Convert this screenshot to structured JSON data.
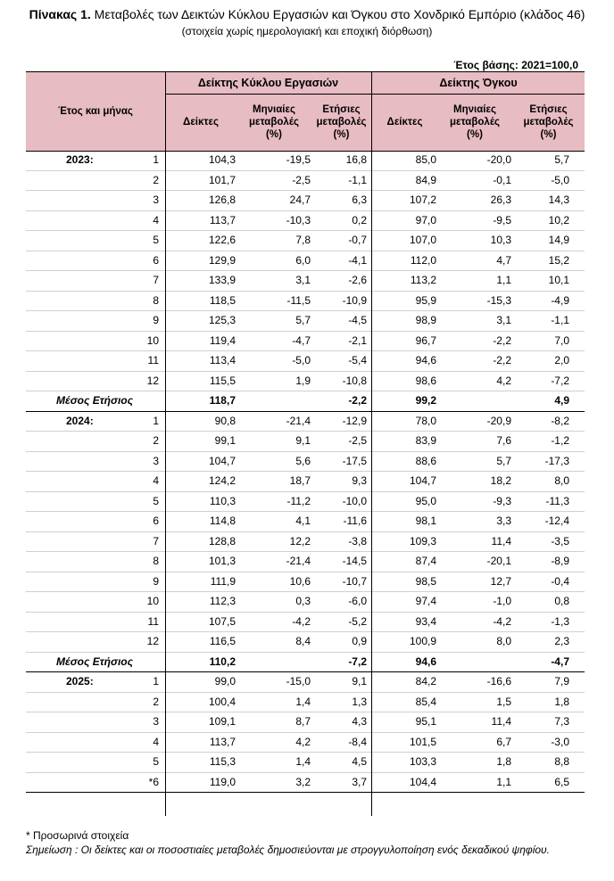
{
  "title": {
    "prefix": "Πίνακας 1.",
    "text": "Μεταβολές των Δεικτών Κύκλου Εργασιών και Όγκου στο Χονδρικό Εμπόριο (κλάδος 46)"
  },
  "subtitle": "(στοιχεία χωρίς ημερολογιακή και εποχική διόρθωση)",
  "base_year": "Έτος βάσης: 2021=100,0",
  "headers": {
    "group_turnover": "Δείκτης Κύκλου Εργασιών",
    "group_volume": "Δείκτης Όγκου",
    "year_month": "Έτος και μήνας",
    "index": "Δείκτες",
    "monthly_line1": "Μηνιαίες",
    "monthly_line2": "μεταβολές",
    "monthly_line3": "(%)",
    "annual_line1": "Ετήσιες",
    "annual_line2": "μεταβολές",
    "annual_line3": "(%)"
  },
  "rows": [
    {
      "year": "2023:",
      "month": "1",
      "v": [
        "104,3",
        "-19,5",
        "16,8",
        "85,0",
        "-20,0",
        "5,7"
      ]
    },
    {
      "year": "",
      "month": "2",
      "v": [
        "101,7",
        "-2,5",
        "-1,1",
        "84,9",
        "-0,1",
        "-5,0"
      ]
    },
    {
      "year": "",
      "month": "3",
      "v": [
        "126,8",
        "24,7",
        "6,3",
        "107,2",
        "26,3",
        "14,3"
      ]
    },
    {
      "year": "",
      "month": "4",
      "v": [
        "113,7",
        "-10,3",
        "0,2",
        "97,0",
        "-9,5",
        "10,2"
      ]
    },
    {
      "year": "",
      "month": "5",
      "v": [
        "122,6",
        "7,8",
        "-0,7",
        "107,0",
        "10,3",
        "14,9"
      ]
    },
    {
      "year": "",
      "month": "6",
      "v": [
        "129,9",
        "6,0",
        "-4,1",
        "112,0",
        "4,7",
        "15,2"
      ]
    },
    {
      "year": "",
      "month": "7",
      "v": [
        "133,9",
        "3,1",
        "-2,6",
        "113,2",
        "1,1",
        "10,1"
      ]
    },
    {
      "year": "",
      "month": "8",
      "v": [
        "118,5",
        "-11,5",
        "-10,9",
        "95,9",
        "-15,3",
        "-4,9"
      ]
    },
    {
      "year": "",
      "month": "9",
      "v": [
        "125,3",
        "5,7",
        "-4,5",
        "98,9",
        "3,1",
        "-1,1"
      ]
    },
    {
      "year": "",
      "month": "10",
      "v": [
        "119,4",
        "-4,7",
        "-2,1",
        "96,7",
        "-2,2",
        "7,0"
      ]
    },
    {
      "year": "",
      "month": "11",
      "v": [
        "113,4",
        "-5,0",
        "-5,4",
        "94,6",
        "-2,2",
        "2,0"
      ]
    },
    {
      "year": "",
      "month": "12",
      "v": [
        "115,5",
        "1,9",
        "-10,8",
        "98,6",
        "4,2",
        "-7,2"
      ]
    },
    {
      "avg": "Μέσος Ετήσιος",
      "v": [
        "118,7",
        "",
        "-2,2",
        "99,2",
        "",
        "4,9"
      ]
    },
    {
      "year": "2024:",
      "month": "1",
      "v": [
        "90,8",
        "-21,4",
        "-12,9",
        "78,0",
        "-20,9",
        "-8,2"
      ]
    },
    {
      "year": "",
      "month": "2",
      "v": [
        "99,1",
        "9,1",
        "-2,5",
        "83,9",
        "7,6",
        "-1,2"
      ]
    },
    {
      "year": "",
      "month": "3",
      "v": [
        "104,7",
        "5,6",
        "-17,5",
        "88,6",
        "5,7",
        "-17,3"
      ]
    },
    {
      "year": "",
      "month": "4",
      "v": [
        "124,2",
        "18,7",
        "9,3",
        "104,7",
        "18,2",
        "8,0"
      ]
    },
    {
      "year": "",
      "month": "5",
      "v": [
        "110,3",
        "-11,2",
        "-10,0",
        "95,0",
        "-9,3",
        "-11,3"
      ]
    },
    {
      "year": "",
      "month": "6",
      "v": [
        "114,8",
        "4,1",
        "-11,6",
        "98,1",
        "3,3",
        "-12,4"
      ]
    },
    {
      "year": "",
      "month": "7",
      "v": [
        "128,8",
        "12,2",
        "-3,8",
        "109,3",
        "11,4",
        "-3,5"
      ]
    },
    {
      "year": "",
      "month": "8",
      "v": [
        "101,3",
        "-21,4",
        "-14,5",
        "87,4",
        "-20,1",
        "-8,9"
      ]
    },
    {
      "year": "",
      "month": "9",
      "v": [
        "111,9",
        "10,6",
        "-10,7",
        "98,5",
        "12,7",
        "-0,4"
      ]
    },
    {
      "year": "",
      "month": "10",
      "v": [
        "112,3",
        "0,3",
        "-6,0",
        "97,4",
        "-1,0",
        "0,8"
      ]
    },
    {
      "year": "",
      "month": "11",
      "v": [
        "107,5",
        "-4,2",
        "-5,2",
        "93,4",
        "-4,2",
        "-1,3"
      ]
    },
    {
      "year": "",
      "month": "12",
      "v": [
        "116,5",
        "8,4",
        "0,9",
        "100,9",
        "8,0",
        "2,3"
      ]
    },
    {
      "avg": "Μέσος Ετήσιος",
      "v": [
        "110,2",
        "",
        "-7,2",
        "94,6",
        "",
        "-4,7"
      ]
    },
    {
      "year": "2025:",
      "month": "1",
      "v": [
        "99,0",
        "-15,0",
        "9,1",
        "84,2",
        "-16,6",
        "7,9"
      ]
    },
    {
      "year": "",
      "month": "2",
      "v": [
        "100,4",
        "1,4",
        "1,3",
        "85,4",
        "1,5",
        "1,8"
      ]
    },
    {
      "year": "",
      "month": "3",
      "v": [
        "109,1",
        "8,7",
        "4,3",
        "95,1",
        "11,4",
        "7,3"
      ]
    },
    {
      "year": "",
      "month": "4",
      "v": [
        "113,7",
        "4,2",
        "-8,4",
        "101,5",
        "6,7",
        "-3,0"
      ]
    },
    {
      "year": "",
      "month": "5",
      "v": [
        "115,3",
        "1,4",
        "4,5",
        "103,3",
        "1,8",
        "8,8"
      ]
    },
    {
      "year": "",
      "month": "*6",
      "v": [
        "119,0",
        "3,2",
        "3,7",
        "104,4",
        "1,1",
        "6,5"
      ]
    }
  ],
  "notes": {
    "provisional": "*  Προσωρινά στοιχεία",
    "remark": "Σημείωση : Οι δείκτες και οι ποσοστιαίες μεταβολές δημοσιεύονται με στρογγυλοποίηση ενός δεκαδικού ψηφίου."
  }
}
